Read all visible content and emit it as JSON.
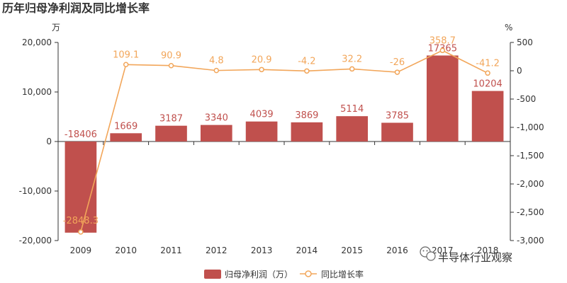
{
  "chart_data": {
    "type": "bar",
    "title": "历年归母净利润及同比增长率",
    "categories": [
      "2009",
      "2010",
      "2011",
      "2012",
      "2013",
      "2014",
      "2015",
      "2016",
      "2017",
      "2018"
    ],
    "series": [
      {
        "name": "归母净利润（万）",
        "kind": "bar",
        "axis": "left",
        "values": [
          -18406,
          1669,
          3187,
          3340,
          4039,
          3869,
          5114,
          3785,
          17365,
          10204
        ],
        "labels": [
          "-18406",
          "1669",
          "3187",
          "3340",
          "4039",
          "3869",
          "5114",
          "3785",
          "17365",
          "10204"
        ]
      },
      {
        "name": "同比增长率",
        "kind": "line",
        "axis": "right",
        "values": [
          -2848.3,
          109.1,
          90.9,
          4.8,
          20.9,
          -4.2,
          32.2,
          -26,
          358.7,
          -41.2
        ],
        "labels": [
          "-2848.3",
          "109.1",
          "90.9",
          "4.8",
          "20.9",
          "-4.2",
          "32.2",
          "-26",
          "358.7",
          "-41.2"
        ]
      }
    ],
    "left_axis": {
      "unit": "万",
      "ylim": [
        -20000,
        20000
      ],
      "ticks": [
        "20,000",
        "10,000",
        "0",
        "-10,000",
        "-20,000"
      ],
      "tick_values": [
        20000,
        10000,
        0,
        -10000,
        -20000
      ]
    },
    "right_axis": {
      "unit": "%",
      "ylim": [
        -3000,
        500
      ],
      "ticks": [
        "500",
        "0",
        "-500",
        "-1,000",
        "-1,500",
        "-2,000",
        "-2,500",
        "-3,000"
      ],
      "tick_values": [
        500,
        0,
        -500,
        -1000,
        -1500,
        -2000,
        -2500,
        -3000
      ]
    },
    "legend": {
      "position": "bottom-center"
    },
    "grid": false,
    "colors": {
      "bar": "#c0504d",
      "line": "#f2a65a",
      "axis": "#333333"
    }
  },
  "watermark": {
    "icon": "wechat-icon",
    "text": "半导体行业观察"
  }
}
